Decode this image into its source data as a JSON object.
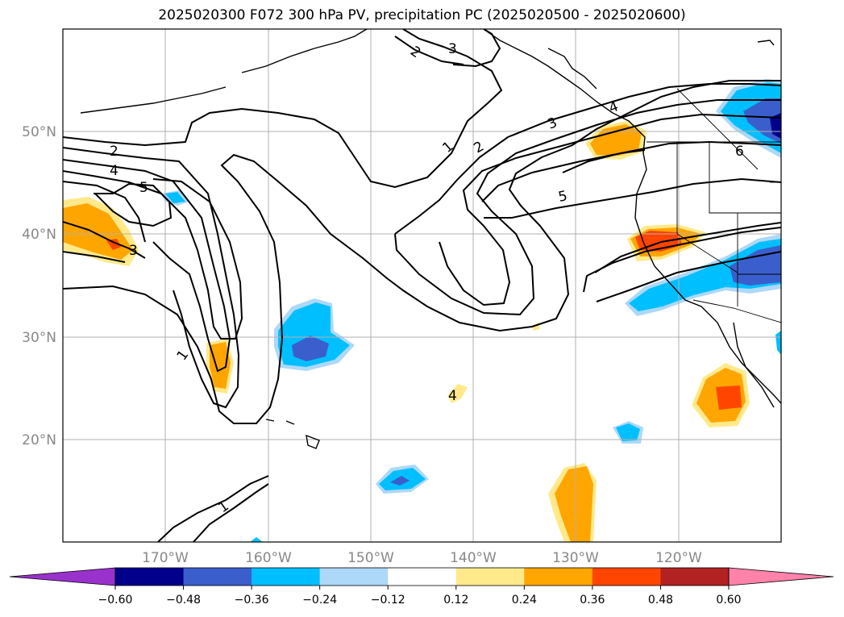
{
  "title": "2025020300 F072 300 hPa PV, precipitation PC (2025020500 - 2025020600)",
  "latitude_labels": [
    "50°N",
    "40°N",
    "30°N",
    "20°N"
  ],
  "longitude_labels": [
    "170°W",
    "160°W",
    "150°W",
    "140°W",
    "130°W",
    "120°W"
  ],
  "colorbar": {
    "ticks": [
      "−0.60",
      "−0.48",
      "−0.36",
      "−0.24",
      "−0.12",
      "0.12",
      "0.24",
      "0.36",
      "0.48",
      "0.60"
    ],
    "colors": [
      "#9932cc",
      "#00008b",
      "#3a5fcd",
      "#00bfff",
      "#add8f8",
      "#ffffff",
      "#ffe98a",
      "#ffa500",
      "#ff4500",
      "#b22222",
      "#ff82ab"
    ]
  },
  "contour_labels": [
    "1",
    "2",
    "3",
    "4",
    "5",
    "6"
  ],
  "map_extent": {
    "lon": [
      -180,
      -110
    ],
    "lat": [
      10,
      60
    ]
  }
}
